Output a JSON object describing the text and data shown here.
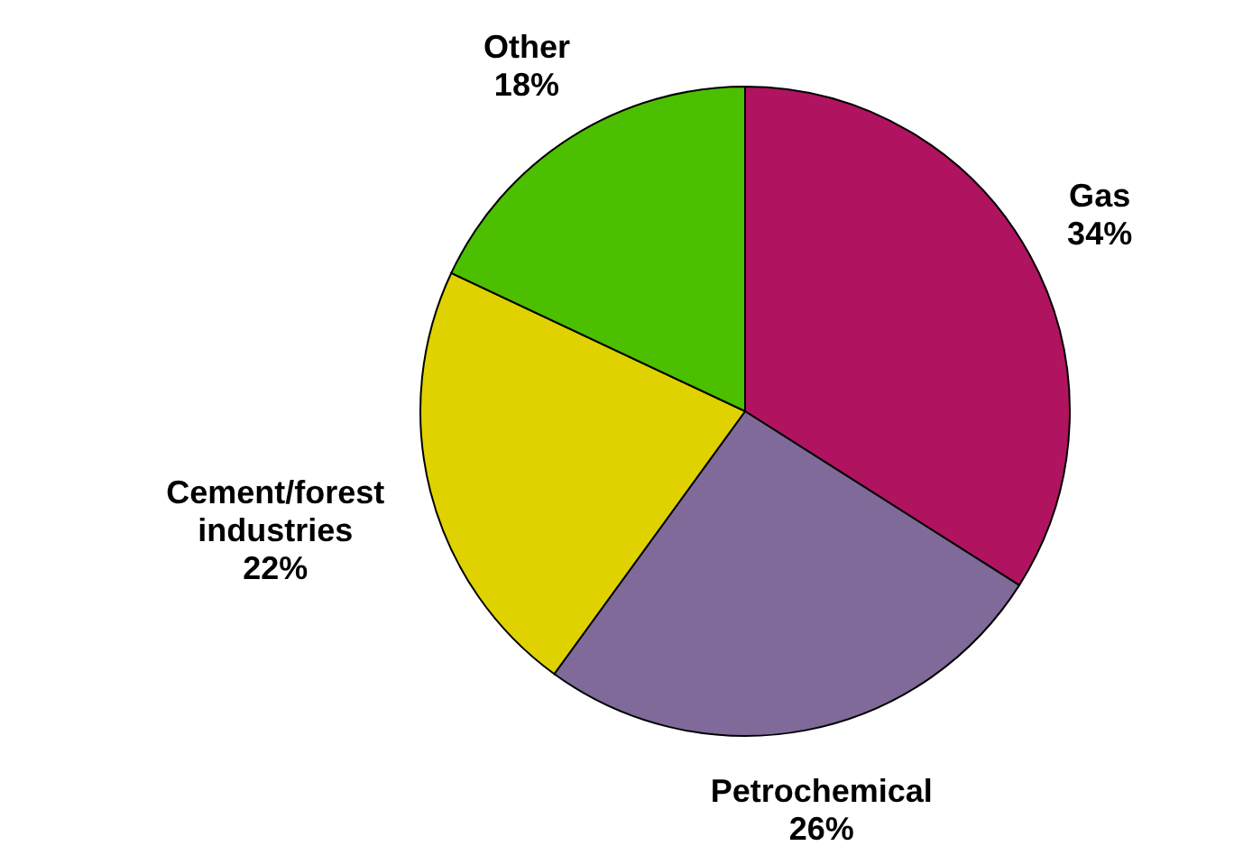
{
  "chart_data": {
    "type": "pie",
    "categories": [
      "Gas",
      "Petrochemical",
      "Cement/forest industries",
      "Other"
    ],
    "values": [
      34,
      26,
      22,
      18
    ],
    "value_labels": [
      "34%",
      "26%",
      "22%",
      "18%"
    ],
    "colors": [
      "#b0135f",
      "#7f6a9a",
      "#dfd200",
      "#4cbf00"
    ]
  }
}
